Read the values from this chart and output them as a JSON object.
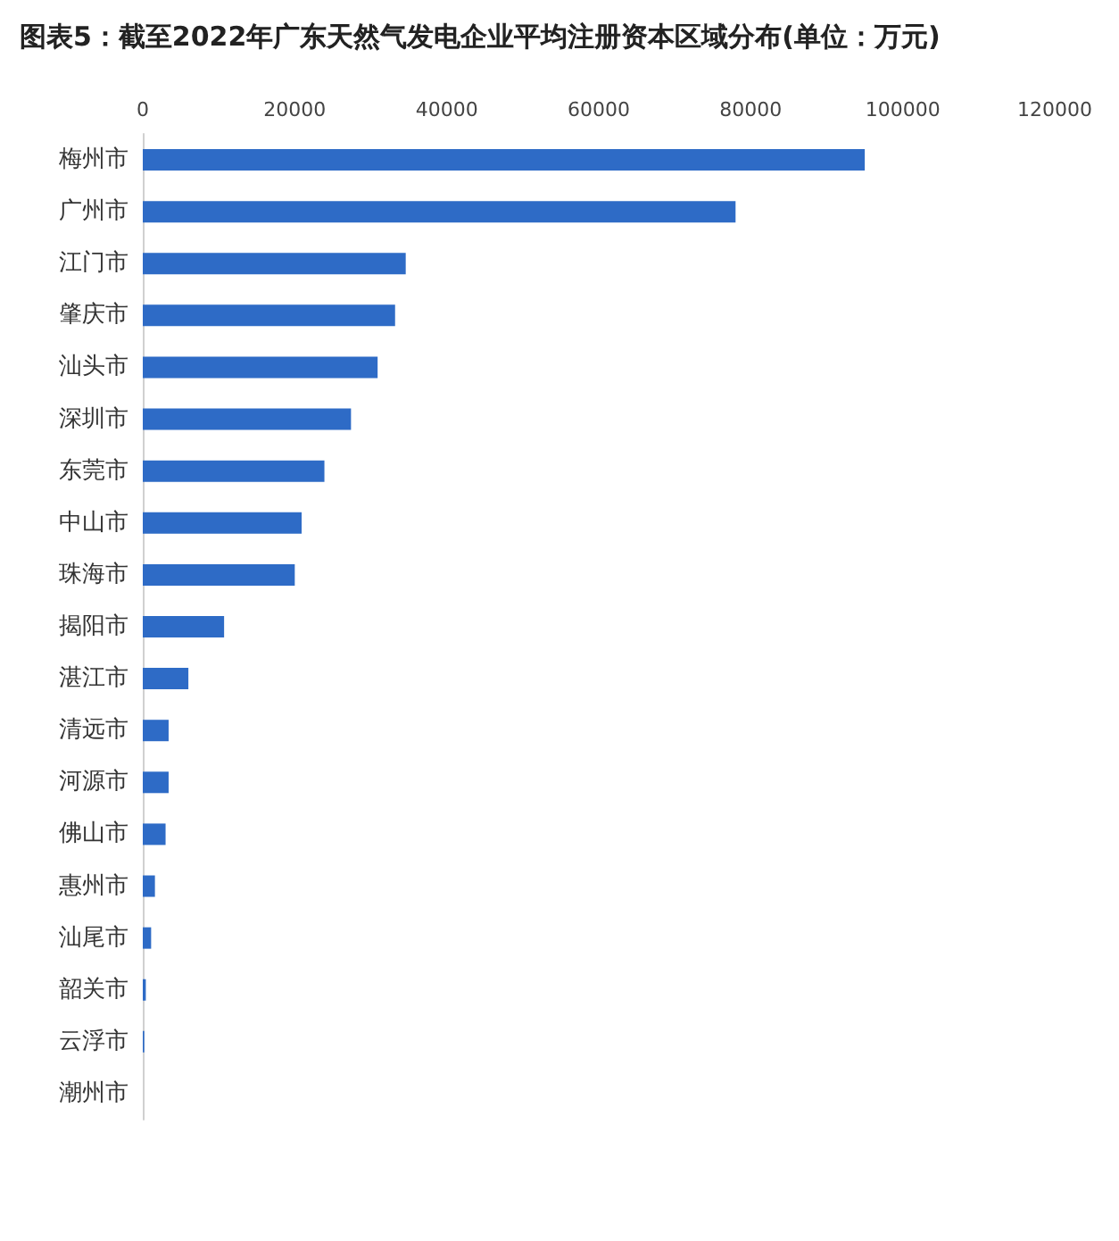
{
  "chart_data": {
    "type": "bar",
    "orientation": "horizontal",
    "title": "图表5：截至2022年广东天然气发电企业平均注册资本区域分布(单位：万元)",
    "categories": [
      "梅州市",
      "广州市",
      "江门市",
      "肇庆市",
      "汕头市",
      "深圳市",
      "东莞市",
      "中山市",
      "珠海市",
      "揭阳市",
      "湛江市",
      "清远市",
      "河源市",
      "佛山市",
      "惠州市",
      "汕尾市",
      "韶关市",
      "云浮市",
      "潮州市"
    ],
    "values": [
      95000,
      78000,
      34600,
      33200,
      30900,
      27400,
      23900,
      20900,
      20000,
      10700,
      6000,
      3400,
      3400,
      3000,
      1600,
      1100,
      400,
      200,
      0
    ],
    "color": "#2e6bc6",
    "xlim": [
      0,
      120000
    ],
    "xticks": [
      0,
      20000,
      40000,
      60000,
      80000,
      100000,
      120000
    ],
    "grid": false
  }
}
